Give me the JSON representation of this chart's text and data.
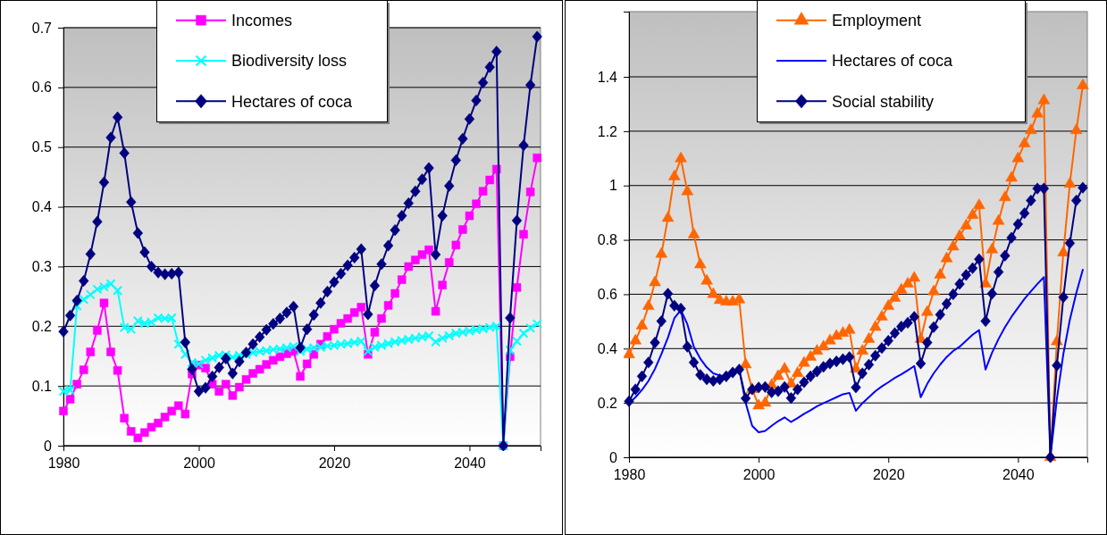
{
  "chart_data": [
    {
      "type": "line",
      "x": [
        1980,
        1981,
        1982,
        1983,
        1984,
        1985,
        1986,
        1987,
        1988,
        1989,
        1990,
        1991,
        1992,
        1993,
        1994,
        1995,
        1996,
        1997,
        1998,
        1999,
        2000,
        2001,
        2002,
        2003,
        2004,
        2005,
        2006,
        2007,
        2008,
        2009,
        2010,
        2011,
        2012,
        2013,
        2014,
        2015,
        2016,
        2017,
        2018,
        2019,
        2020,
        2021,
        2022,
        2023,
        2024,
        2025,
        2026,
        2027,
        2028,
        2029,
        2030,
        2031,
        2032,
        2033,
        2034,
        2035,
        2036,
        2037,
        2038,
        2039,
        2040,
        2041,
        2042,
        2043,
        2044,
        2045,
        2046,
        2047,
        2048,
        2049,
        2050
      ],
      "xlim": [
        1980,
        2050.5
      ],
      "xticks": [
        1980,
        2000,
        2020,
        2040
      ],
      "ylim": [
        0,
        0.7
      ],
      "yticks": [
        0,
        0.1,
        0.2,
        0.3,
        0.4,
        0.5,
        0.6,
        0.7
      ],
      "grid": "y",
      "legend": "top",
      "series": [
        {
          "name": "Incomes",
          "color": "#ff00ff",
          "marker": "square",
          "values": [
            0.058,
            0.078,
            0.103,
            0.127,
            0.157,
            0.193,
            0.239,
            0.157,
            0.126,
            0.046,
            0.024,
            0.013,
            0.022,
            0.031,
            0.038,
            0.048,
            0.058,
            0.067,
            0.053,
            0.12,
            0.135,
            0.13,
            0.103,
            0.091,
            0.103,
            0.084,
            0.098,
            0.111,
            0.121,
            0.128,
            0.136,
            0.143,
            0.149,
            0.154,
            0.158,
            0.116,
            0.137,
            0.153,
            0.17,
            0.183,
            0.195,
            0.205,
            0.213,
            0.223,
            0.232,
            0.153,
            0.19,
            0.213,
            0.235,
            0.255,
            0.278,
            0.3,
            0.311,
            0.32,
            0.328,
            0.225,
            0.269,
            0.307,
            0.336,
            0.362,
            0.385,
            0.405,
            0.426,
            0.445,
            0.463,
            0,
            0.149,
            0.265,
            0.354,
            0.425,
            0.482
          ]
        },
        {
          "name": "Biodiversity loss",
          "color": "#00ffff",
          "marker": "cross",
          "values": [
            0.091,
            0.093,
            0.234,
            0.245,
            0.253,
            0.262,
            0.266,
            0.271,
            0.26,
            0.198,
            0.195,
            0.209,
            0.205,
            0.207,
            0.214,
            0.213,
            0.214,
            0.17,
            0.153,
            0.139,
            0.137,
            0.143,
            0.147,
            0.151,
            0.152,
            0.148,
            0.151,
            0.153,
            0.156,
            0.158,
            0.159,
            0.161,
            0.162,
            0.164,
            0.166,
            0.158,
            0.162,
            0.164,
            0.165,
            0.167,
            0.168,
            0.17,
            0.171,
            0.173,
            0.175,
            0.158,
            0.165,
            0.168,
            0.171,
            0.174,
            0.176,
            0.178,
            0.18,
            0.182,
            0.184,
            0.174,
            0.18,
            0.184,
            0.188,
            0.19,
            0.192,
            0.194,
            0.196,
            0.198,
            0.2,
            0,
            0.16,
            0.175,
            0.188,
            0.197,
            0.204
          ]
        },
        {
          "name": "Hectares of coca",
          "color": "#000080",
          "marker": "diamond",
          "values": [
            0.191,
            0.218,
            0.243,
            0.276,
            0.321,
            0.375,
            0.441,
            0.516,
            0.55,
            0.49,
            0.408,
            0.356,
            0.324,
            0.3,
            0.29,
            0.287,
            0.288,
            0.29,
            0.173,
            0.128,
            0.091,
            0.097,
            0.116,
            0.131,
            0.146,
            0.121,
            0.141,
            0.156,
            0.17,
            0.182,
            0.194,
            0.204,
            0.213,
            0.223,
            0.233,
            0.164,
            0.195,
            0.219,
            0.239,
            0.258,
            0.274,
            0.288,
            0.302,
            0.315,
            0.329,
            0.22,
            0.268,
            0.304,
            0.335,
            0.361,
            0.385,
            0.406,
            0.426,
            0.446,
            0.465,
            0.32,
            0.385,
            0.435,
            0.478,
            0.514,
            0.547,
            0.578,
            0.608,
            0.634,
            0.66,
            0,
            0.214,
            0.377,
            0.503,
            0.604,
            0.685
          ]
        }
      ]
    },
    {
      "type": "line",
      "x": [
        1980,
        1981,
        1982,
        1983,
        1984,
        1985,
        1986,
        1987,
        1988,
        1989,
        1990,
        1991,
        1992,
        1993,
        1994,
        1995,
        1996,
        1997,
        1998,
        1999,
        2000,
        2001,
        2002,
        2003,
        2004,
        2005,
        2006,
        2007,
        2008,
        2009,
        2010,
        2011,
        2012,
        2013,
        2014,
        2015,
        2016,
        2017,
        2018,
        2019,
        2020,
        2021,
        2022,
        2023,
        2024,
        2025,
        2026,
        2027,
        2028,
        2029,
        2030,
        2031,
        2032,
        2033,
        2034,
        2035,
        2036,
        2037,
        2038,
        2039,
        2040,
        2041,
        2042,
        2043,
        2044,
        2045,
        2046,
        2047,
        2048,
        2049,
        2050
      ],
      "xlim": [
        1980,
        2050.7
      ],
      "xticks": [
        1980,
        2000,
        2020,
        2040
      ],
      "ylim": [
        0,
        1.64
      ],
      "yticks": [
        0,
        0.2,
        0.4,
        0.6,
        0.8,
        1,
        1.2,
        1.4
      ],
      "grid": "y",
      "legend": "top",
      "series": [
        {
          "name": "Employment",
          "color": "#ff6600",
          "marker": "triangle",
          "values": [
            0.378,
            0.429,
            0.484,
            0.556,
            0.643,
            0.748,
            0.88,
            1.033,
            1.099,
            0.978,
            0.819,
            0.709,
            0.649,
            0.6,
            0.578,
            0.572,
            0.572,
            0.58,
            0.341,
            0.25,
            0.19,
            0.2,
            0.265,
            0.298,
            0.325,
            0.27,
            0.309,
            0.347,
            0.369,
            0.391,
            0.407,
            0.429,
            0.446,
            0.457,
            0.468,
            0.325,
            0.391,
            0.435,
            0.479,
            0.517,
            0.556,
            0.586,
            0.616,
            0.638,
            0.66,
            0.435,
            0.534,
            0.61,
            0.671,
            0.731,
            0.775,
            0.814,
            0.852,
            0.891,
            0.927,
            0.638,
            0.764,
            0.869,
            0.956,
            1.028,
            1.099,
            1.154,
            1.203,
            1.264,
            1.313,
            0,
            0.426,
            0.753,
            1.006,
            1.203,
            1.368
          ]
        },
        {
          "name": "Hectares of coca",
          "color": "#0000ff",
          "marker": "none",
          "values": [
            0.199,
            0.221,
            0.248,
            0.281,
            0.325,
            0.38,
            0.44,
            0.512,
            0.542,
            0.49,
            0.407,
            0.363,
            0.331,
            0.309,
            0.301,
            0.3,
            0.309,
            0.323,
            0.2,
            0.116,
            0.092,
            0.097,
            0.116,
            0.133,
            0.147,
            0.13,
            0.144,
            0.16,
            0.173,
            0.188,
            0.199,
            0.21,
            0.221,
            0.232,
            0.237,
            0.171,
            0.199,
            0.221,
            0.243,
            0.261,
            0.276,
            0.292,
            0.305,
            0.32,
            0.336,
            0.221,
            0.27,
            0.309,
            0.341,
            0.369,
            0.391,
            0.407,
            0.429,
            0.451,
            0.468,
            0.323,
            0.385,
            0.435,
            0.479,
            0.517,
            0.55,
            0.583,
            0.611,
            0.638,
            0.663,
            0,
            0.215,
            0.38,
            0.506,
            0.605,
            0.69
          ]
        },
        {
          "name": "Social stability",
          "color": "#000080",
          "marker": "diamond",
          "values": [
            0.206,
            0.25,
            0.298,
            0.349,
            0.422,
            0.501,
            0.602,
            0.558,
            0.547,
            0.407,
            0.349,
            0.303,
            0.287,
            0.281,
            0.287,
            0.298,
            0.312,
            0.323,
            0.217,
            0.25,
            0.257,
            0.259,
            0.239,
            0.243,
            0.259,
            0.218,
            0.25,
            0.276,
            0.298,
            0.316,
            0.333,
            0.345,
            0.353,
            0.361,
            0.369,
            0.257,
            0.309,
            0.341,
            0.374,
            0.402,
            0.429,
            0.457,
            0.481,
            0.495,
            0.517,
            0.345,
            0.422,
            0.479,
            0.525,
            0.565,
            0.6,
            0.638,
            0.671,
            0.696,
            0.729,
            0.501,
            0.602,
            0.682,
            0.742,
            0.808,
            0.858,
            0.898,
            0.945,
            0.989,
            0.989,
            0,
            0.338,
            0.589,
            0.788,
            0.945,
            0.992
          ]
        }
      ]
    }
  ]
}
